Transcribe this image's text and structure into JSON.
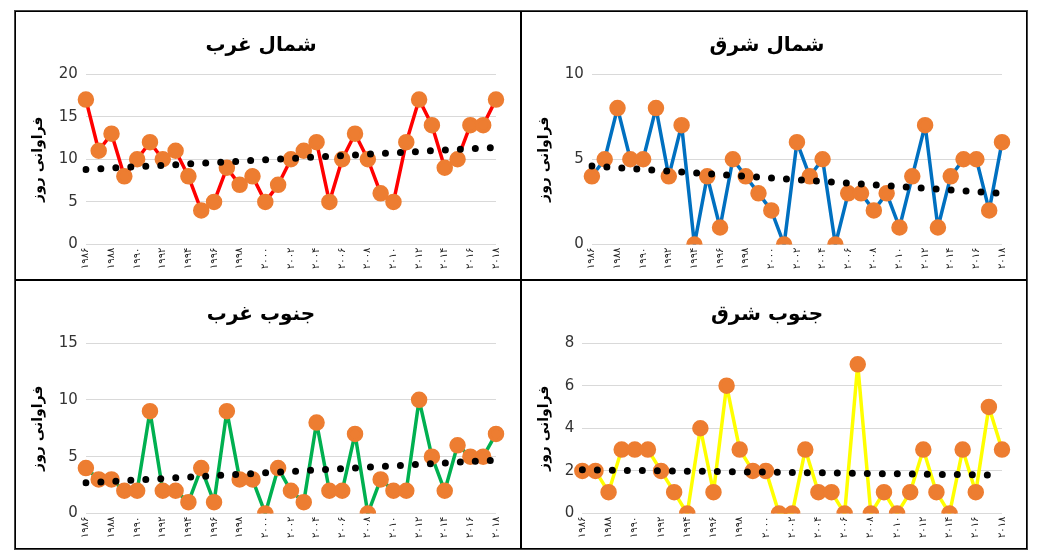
{
  "chart_data": [
    {
      "type": "line",
      "title": "شمال غرب",
      "ylabel": "فراوانی روز",
      "categories": [
        "۱۹۸۶",
        null,
        "۱۹۸۸",
        null,
        "۱۹۹۰",
        null,
        "۱۹۹۲",
        null,
        "۱۹۹۴",
        null,
        "۱۹۹۶",
        null,
        "۱۹۹۸",
        null,
        "۲۰۰۰",
        null,
        "۲۰۰۲",
        null,
        "۲۰۰۴",
        null,
        "۲۰۰۶",
        null,
        "۲۰۰۸",
        null,
        "۲۰۱۰",
        null,
        "۲۰۱۲",
        null,
        "۲۰۱۴",
        null,
        "۲۰۱۶",
        null,
        "۲۰۱۸"
      ],
      "ylim": [
        0,
        20
      ],
      "yticks": [
        0,
        5,
        10,
        15,
        20
      ],
      "grid": "y",
      "legend": false,
      "series": [
        {
          "color": "#ff0000",
          "marker": "circle",
          "line_style": "solid",
          "values": [
            17,
            11,
            13,
            8,
            10,
            12,
            10,
            11,
            8,
            4,
            5,
            9,
            7,
            8,
            5,
            7,
            10,
            11,
            12,
            5,
            10,
            13,
            10,
            6,
            5,
            12,
            17,
            14,
            9,
            10,
            14,
            14,
            17
          ]
        },
        {
          "type": "line",
          "color": "#000000",
          "marker": "none",
          "line_style": "dotted",
          "values": [
            8.8,
            null,
            null,
            null,
            null,
            null,
            null,
            null,
            null,
            null,
            null,
            null,
            null,
            null,
            null,
            null,
            null,
            null,
            null,
            null,
            null,
            null,
            null,
            null,
            null,
            null,
            null,
            null,
            null,
            null,
            null,
            null,
            11.4
          ]
        }
      ]
    },
    {
      "type": "line",
      "title": "شمال شرق",
      "ylabel": "فراوانی روز",
      "categories": [
        "۱۹۸۶",
        null,
        "۱۹۸۸",
        null,
        "۱۹۹۰",
        null,
        "۱۹۹۲",
        null,
        "۱۹۹۴",
        null,
        "۱۹۹۶",
        null,
        "۱۹۹۸",
        null,
        "۲۰۰۰",
        null,
        "۲۰۰۲",
        null,
        "۲۰۰۴",
        null,
        "۲۰۰۶",
        null,
        "۲۰۰۸",
        null,
        "۲۰۱۰",
        null,
        "۲۰۱۲",
        null,
        "۲۰۱۴",
        null,
        "۲۰۱۶",
        null,
        "۲۰۱۸"
      ],
      "ylim": [
        0,
        10
      ],
      "yticks": [
        0,
        5,
        10
      ],
      "grid": "y",
      "legend": false,
      "series": [
        {
          "color": "#0070c0",
          "marker": "circle",
          "line_style": "solid",
          "values": [
            4,
            5,
            8,
            5,
            5,
            8,
            4,
            7,
            0,
            4,
            1,
            5,
            4,
            3,
            2,
            0,
            6,
            4,
            5,
            0,
            3,
            3,
            2,
            3,
            1,
            4,
            7,
            1,
            4,
            5,
            5,
            2,
            6
          ]
        },
        {
          "type": "line",
          "color": "#000000",
          "marker": "none",
          "line_style": "dotted",
          "values": [
            4.6,
            null,
            null,
            null,
            null,
            null,
            null,
            null,
            null,
            null,
            null,
            null,
            null,
            null,
            null,
            null,
            null,
            null,
            null,
            null,
            null,
            null,
            null,
            null,
            null,
            null,
            null,
            null,
            null,
            null,
            null,
            null,
            3.0
          ]
        }
      ]
    },
    {
      "type": "line",
      "title": "جنوب غرب",
      "ylabel": "فراوانی روز",
      "categories": [
        "۱۹۸۶",
        null,
        "۱۹۸۸",
        null,
        "۱۹۹۰",
        null,
        "۱۹۹۲",
        null,
        "۱۹۹۴",
        null,
        "۱۹۹۶",
        null,
        "۱۹۹۸",
        null,
        "۲۰۰۰",
        null,
        "۲۰۰۲",
        null,
        "۲۰۰۴",
        null,
        "۲۰۰۶",
        null,
        "۲۰۰۸",
        null,
        "۲۰۱۰",
        null,
        "۲۰۱۲",
        null,
        "۲۰۱۴",
        null,
        "۲۰۱۶",
        null,
        "۲۰۱۸"
      ],
      "ylim": [
        0,
        15
      ],
      "yticks": [
        0,
        5,
        10,
        15
      ],
      "grid": "y",
      "legend": false,
      "series": [
        {
          "color": "#00b050",
          "marker": "circle",
          "line_style": "solid",
          "values": [
            4,
            3,
            3,
            2,
            2,
            9,
            2,
            2,
            1,
            4,
            1,
            9,
            3,
            3,
            0,
            4,
            2,
            1,
            8,
            2,
            2,
            7,
            0,
            3,
            2,
            2,
            10,
            5,
            2,
            6,
            5,
            5,
            7
          ]
        },
        {
          "type": "line",
          "color": "#000000",
          "marker": "none",
          "line_style": "dotted",
          "values": [
            2.7,
            null,
            null,
            null,
            null,
            null,
            null,
            null,
            null,
            null,
            null,
            null,
            null,
            null,
            null,
            null,
            null,
            null,
            null,
            null,
            null,
            null,
            null,
            null,
            null,
            null,
            null,
            null,
            null,
            null,
            null,
            null,
            4.7
          ]
        }
      ]
    },
    {
      "type": "line",
      "title": "جنوب شرق",
      "ylabel": "فراوانی روز",
      "categories": [
        "۱۹۸۶",
        null,
        "۱۹۸۸",
        null,
        "۱۹۹۰",
        null,
        "۱۹۹۲",
        null,
        "۱۹۹۴",
        null,
        "۱۹۹۶",
        null,
        "۱۹۹۸",
        null,
        "۲۰۰۰",
        null,
        "۲۰۰۲",
        null,
        "۲۰۰۴",
        null,
        "۲۰۰۶",
        null,
        "۲۰۰۸",
        null,
        "۲۰۱۰",
        null,
        "۲۰۱۲",
        null,
        "۲۰۱۴",
        null,
        "۲۰۱۶",
        null,
        "۲۰۱۸"
      ],
      "ylim": [
        0,
        8
      ],
      "yticks": [
        0,
        2,
        4,
        6,
        8
      ],
      "grid": "y",
      "legend": false,
      "series": [
        {
          "color": "#ffff00",
          "marker": "circle",
          "line_style": "solid",
          "values": [
            2,
            2,
            1,
            3,
            3,
            3,
            2,
            1,
            0,
            4,
            1,
            6,
            3,
            2,
            2,
            0,
            0,
            3,
            1,
            1,
            0,
            7,
            0,
            1,
            0,
            1,
            3,
            1,
            0,
            3,
            1,
            5,
            3
          ]
        },
        {
          "type": "line",
          "color": "#000000",
          "marker": "none",
          "line_style": "dotted",
          "values": [
            2.05,
            null,
            null,
            null,
            null,
            null,
            null,
            null,
            null,
            null,
            null,
            null,
            null,
            null,
            null,
            null,
            null,
            null,
            null,
            null,
            null,
            null,
            null,
            null,
            null,
            null,
            null,
            null,
            null,
            null,
            null,
            null,
            1.8
          ]
        }
      ]
    }
  ]
}
